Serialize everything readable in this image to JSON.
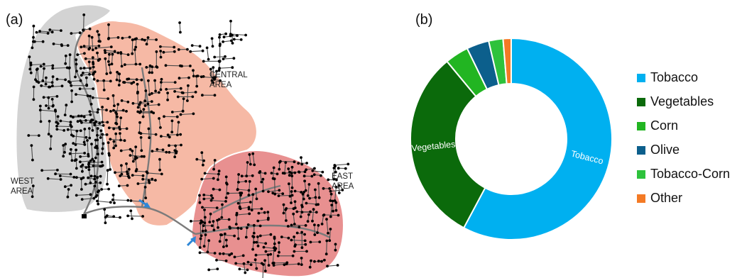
{
  "map_panel": {
    "label": "(a)",
    "areas": [
      {
        "name": "WEST AREA",
        "lines": [
          "WEST",
          "AREA"
        ],
        "color": "#d3d3d3"
      },
      {
        "name": "CENTRAL AREA",
        "lines": [
          "CENTRAL",
          "AREA"
        ],
        "color": "#f6b9a5"
      },
      {
        "name": "EAST AREA",
        "lines": [
          "EAST",
          "AREA"
        ],
        "color": "#e89090"
      }
    ],
    "pipe_color": "#7b7b7b",
    "node_color": "#000000",
    "marker_color": "#2e86d6"
  },
  "chart_panel": {
    "label": "(b)"
  },
  "chart_data": {
    "type": "pie",
    "donut": true,
    "categories": [
      "Tobacco",
      "Vegetables",
      "Corn",
      "Olive",
      "Tobacco-Corn",
      "Other"
    ],
    "values": [
      57.8,
      31.2,
      3.8,
      3.6,
      2.3,
      1.3
    ],
    "colors": [
      "#00b0f0",
      "#0b6a0b",
      "#22b522",
      "#0c5f8c",
      "#2ec23c",
      "#f47a25"
    ],
    "slice_labels": [
      "Tobacco",
      "Vegetables",
      "",
      "",
      "",
      ""
    ],
    "legend": [
      "Tobacco",
      "Vegetables",
      "Corn",
      "Olive",
      "Tobacco-Corn",
      "Other"
    ],
    "legend_position": "right",
    "title": ""
  }
}
